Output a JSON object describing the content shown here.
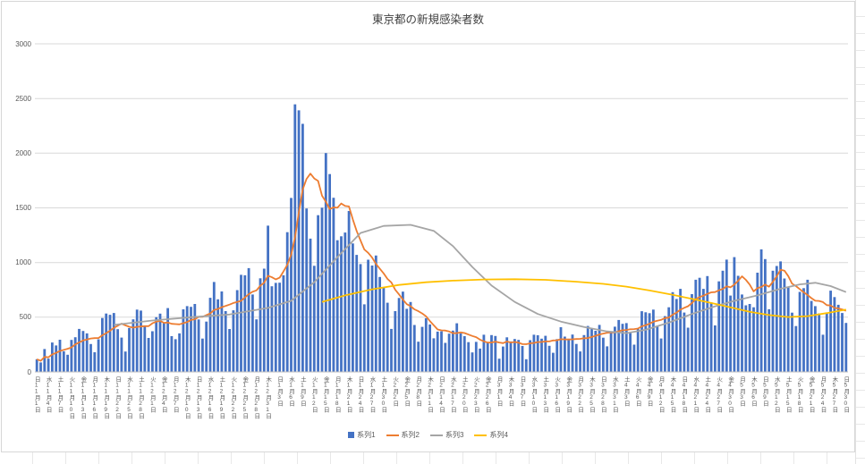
{
  "chart_data": {
    "type": "combo_bar_line",
    "title": "東京都の新規感染者数",
    "ylim": [
      0,
      3000
    ],
    "yticks": [
      "0",
      "500",
      "1000",
      "1500",
      "2000",
      "2500",
      "3000"
    ],
    "grid": true,
    "legend_position": "bottom",
    "x_unit": "day",
    "x_label_every": 3,
    "x_labels": [
      "日11月1日",
      "水11月4日",
      "土11月7日",
      "火11月10日",
      "金11月13日",
      "月11月16日",
      "木11月19日",
      "日11月22日",
      "水11月25日",
      "土11月28日",
      "火12月1日",
      "金12月4日",
      "月12月7日",
      "木12月10日",
      "日12月13日",
      "水12月16日",
      "土12月19日",
      "火12月22日",
      "金12月25日",
      "月12月28日",
      "木12月31日",
      "日1月3日",
      "水1月6日",
      "土1月9日",
      "火1月12日",
      "金1月15日",
      "月1月18日",
      "木1月21日",
      "日1月24日",
      "水1月27日",
      "土1月30日",
      "火2月2日",
      "金2月5日",
      "月2月8日",
      "木2月11日",
      "日2月14日",
      "水2月17日",
      "土2月20日",
      "火2月23日",
      "金2月26日",
      "月3月1日",
      "木3月4日",
      "日3月7日",
      "水3月10日",
      "土3月13日",
      "火3月16日",
      "金3月19日",
      "月3月22日",
      "木3月25日",
      "日3月28日",
      "水3月31日",
      "土4月3日",
      "火4月6日",
      "金4月9日",
      "月4月12日",
      "木4月15日",
      "日4月18日",
      "水4月21日",
      "土4月24日",
      "火4月27日",
      "金4月30日",
      "月5月3日",
      "木5月6日",
      "日5月9日",
      "水5月12日",
      "土5月15日",
      "火5月18日",
      "金5月21日",
      "月5月24日",
      "木5月27日",
      "日5月30日"
    ],
    "series": [
      {
        "name": "系列1",
        "type": "bar",
        "color": "#4472C4",
        "values": [
          116,
          87,
          209,
          122,
          269,
          242,
          294,
          189,
          157,
          293,
          317,
          393,
          374,
          352,
          255,
          180,
          298,
          493,
          534,
          522,
          539,
          391,
          314,
          186,
          401,
          481,
          570,
          561,
          418,
          311,
          372,
          500,
          533,
          449,
          584,
          327,
          299,
          352,
          572,
          602,
          595,
          621,
          480,
          305,
          460,
          678,
          822,
          664,
          736,
          556,
          392,
          563,
          748,
          888,
          884,
          949,
          708,
          481,
          856,
          944,
          1337,
          783,
          814,
          816,
          884,
          1278,
          1591,
          2447,
          2392,
          2268,
          1494,
          1219,
          970,
          1433,
          1502,
          2001,
          1809,
          1592,
          1204,
          1240,
          1274,
          1471,
          1175,
          1070,
          986,
          618,
          1026,
          973,
          1064,
          868,
          769,
          633,
          393,
          556,
          676,
          734,
          577,
          639,
          429,
          276,
          412,
          491,
          434,
          307,
          369,
          371,
          266,
          350,
          378,
          445,
          353,
          327,
          272,
          178,
          275,
          213,
          340,
          270,
          337,
          329,
          121,
          232,
          316,
          279,
          301,
          293,
          237,
          116,
          290,
          340,
          335,
          304,
          330,
          239,
          175,
          300,
          409,
          323,
          303,
          342,
          256,
          187,
          337,
          420,
          394,
          376,
          430,
          313,
          234,
          364,
          414,
          475,
          440,
          446,
          355,
          249,
          399,
          555,
          545,
          537,
          570,
          421,
          306,
          510,
          591,
          729,
          667,
          759,
          543,
          405,
          711,
          843,
          861,
          759,
          876,
          635,
          425,
          828,
          925,
          1027,
          698,
          1050,
          879,
          708,
          609,
          621,
          591,
          907,
          1121,
          1032,
          573,
          925,
          969,
          1010,
          854,
          772,
          542,
          419,
          732,
          766,
          843,
          649,
          602,
          535,
          340,
          542,
          743,
          684,
          614,
          539,
          448
        ]
      },
      {
        "name": "系列2",
        "type": "line",
        "color": "#ED7D31",
        "derive": {
          "moving_average_window": 7,
          "source": "系列1"
        }
      },
      {
        "name": "系列3",
        "type": "line",
        "color": "#A5A5A5",
        "points": [
          [
            20,
            430
          ],
          [
            30,
            470
          ],
          [
            40,
            500
          ],
          [
            50,
            525
          ],
          [
            60,
            585
          ],
          [
            66,
            650
          ],
          [
            72,
            820
          ],
          [
            78,
            1050
          ],
          [
            84,
            1270
          ],
          [
            90,
            1335
          ],
          [
            97,
            1345
          ],
          [
            103,
            1290
          ],
          [
            108,
            1150
          ],
          [
            113,
            960
          ],
          [
            118,
            790
          ],
          [
            124,
            640
          ],
          [
            130,
            530
          ],
          [
            136,
            460
          ],
          [
            142,
            410
          ],
          [
            148,
            370
          ],
          [
            153,
            355
          ],
          [
            158,
            385
          ],
          [
            164,
            450
          ],
          [
            170,
            530
          ],
          [
            176,
            600
          ],
          [
            181,
            650
          ],
          [
            187,
            700
          ],
          [
            193,
            760
          ],
          [
            198,
            800
          ],
          [
            202,
            815
          ],
          [
            206,
            785
          ],
          [
            210,
            730
          ]
        ]
      },
      {
        "name": "系列4",
        "type": "line",
        "color": "#FFC000",
        "points": [
          [
            74,
            640
          ],
          [
            80,
            700
          ],
          [
            87,
            755
          ],
          [
            94,
            795
          ],
          [
            101,
            820
          ],
          [
            108,
            835
          ],
          [
            116,
            845
          ],
          [
            124,
            848
          ],
          [
            132,
            842
          ],
          [
            140,
            825
          ],
          [
            147,
            805
          ],
          [
            153,
            780
          ],
          [
            159,
            745
          ],
          [
            165,
            705
          ],
          [
            170,
            668
          ],
          [
            175,
            630
          ],
          [
            180,
            590
          ],
          [
            185,
            550
          ],
          [
            190,
            520
          ],
          [
            195,
            502
          ],
          [
            200,
            510
          ],
          [
            205,
            538
          ],
          [
            210,
            570
          ]
        ]
      }
    ]
  }
}
